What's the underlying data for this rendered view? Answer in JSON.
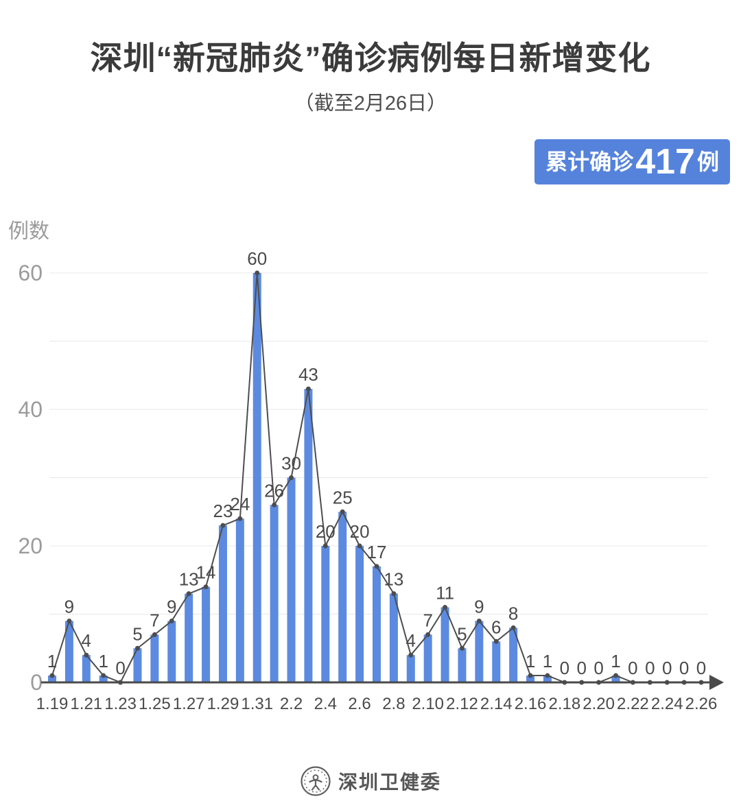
{
  "header": {
    "title": "深圳“新冠肺炎”确诊病例每日新增变化",
    "subtitle": "（截至2月26日）"
  },
  "badge": {
    "prefix": "累计确诊",
    "value": "417",
    "suffix": "例",
    "bg_color": "#5583DC",
    "text_color": "#FFFFFF"
  },
  "chart_data": {
    "type": "bar",
    "title": "深圳“新冠肺炎”确诊病例每日新增变化",
    "subtitle": "（截至2月26日）",
    "xlabel": "",
    "ylabel": "例数",
    "categories": [
      "1.19",
      "1.20",
      "1.21",
      "1.22",
      "1.23",
      "1.24",
      "1.25",
      "1.26",
      "1.27",
      "1.28",
      "1.29",
      "1.30",
      "1.31",
      "2.1",
      "2.2",
      "2.3",
      "2.4",
      "2.5",
      "2.6",
      "2.7",
      "2.8",
      "2.9",
      "2.10",
      "2.11",
      "2.12",
      "2.13",
      "2.14",
      "2.15",
      "2.16",
      "2.17",
      "2.18",
      "2.19",
      "2.20",
      "2.21",
      "2.22",
      "2.23",
      "2.24",
      "2.25",
      "2.26"
    ],
    "values": [
      1,
      9,
      4,
      1,
      0,
      5,
      7,
      9,
      13,
      14,
      23,
      24,
      60,
      26,
      30,
      43,
      20,
      25,
      20,
      17,
      13,
      4,
      7,
      11,
      5,
      9,
      6,
      8,
      1,
      1,
      0,
      0,
      0,
      1,
      0,
      0,
      0,
      0,
      0
    ],
    "cumulative_total": 417,
    "ylim": [
      0,
      60
    ],
    "yticks": [
      0,
      20,
      40,
      60
    ],
    "grid_step": 10,
    "grid": "on",
    "legend": "none",
    "x_tick_every": 2,
    "overlay": "line with point markers and value labels on every bar",
    "bar_color": "#5B8AE0",
    "line_color": "#4D4D4D",
    "axis_color": "#4A4A4A",
    "grid_color": "#E8E8E8"
  },
  "footer": {
    "brand": "深圳卫健委",
    "logo": "shenzhen-health-commission-seal"
  }
}
